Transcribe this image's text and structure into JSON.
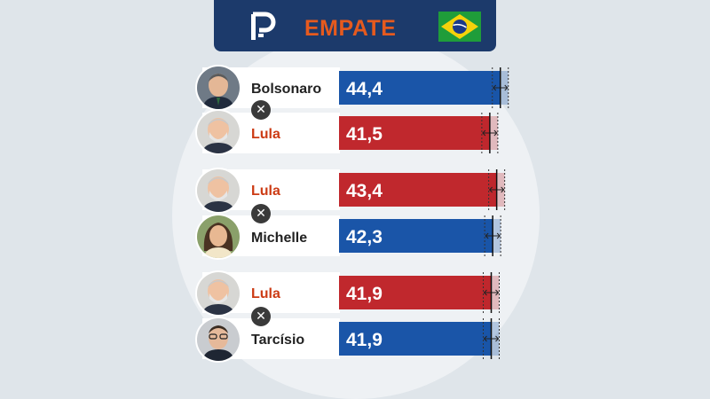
{
  "header": {
    "title": "EMPATE"
  },
  "icons": {
    "logo": "poder-logo-icon",
    "flag": "brazil-flag-icon",
    "versus": "x-circle-icon"
  },
  "colors": {
    "red": "#c0282d",
    "blue": "#1a55a8",
    "name_red": "#cc3b14",
    "name_dark": "#222222",
    "header_bg": "#1c3a6b",
    "header_accent": "#e65a1e"
  },
  "chart_data": {
    "type": "bar",
    "orientation": "horizontal",
    "xlim": [
      0,
      50
    ],
    "matchups": [
      {
        "candidates": [
          {
            "name": "Bolsonaro",
            "label": "44,4",
            "value": 44.4,
            "color": "blue"
          },
          {
            "name": "Lula",
            "label": "41,5",
            "value": 41.5,
            "color": "red"
          }
        ]
      },
      {
        "candidates": [
          {
            "name": "Lula",
            "label": "43,4",
            "value": 43.4,
            "color": "red"
          },
          {
            "name": "Michelle",
            "label": "42,3",
            "value": 42.3,
            "color": "blue"
          }
        ]
      },
      {
        "candidates": [
          {
            "name": "Lula",
            "label": "41,9",
            "value": 41.9,
            "color": "red"
          },
          {
            "name": "Tarcísio",
            "label": "41,9",
            "value": 41.9,
            "color": "blue"
          }
        ]
      }
    ]
  }
}
